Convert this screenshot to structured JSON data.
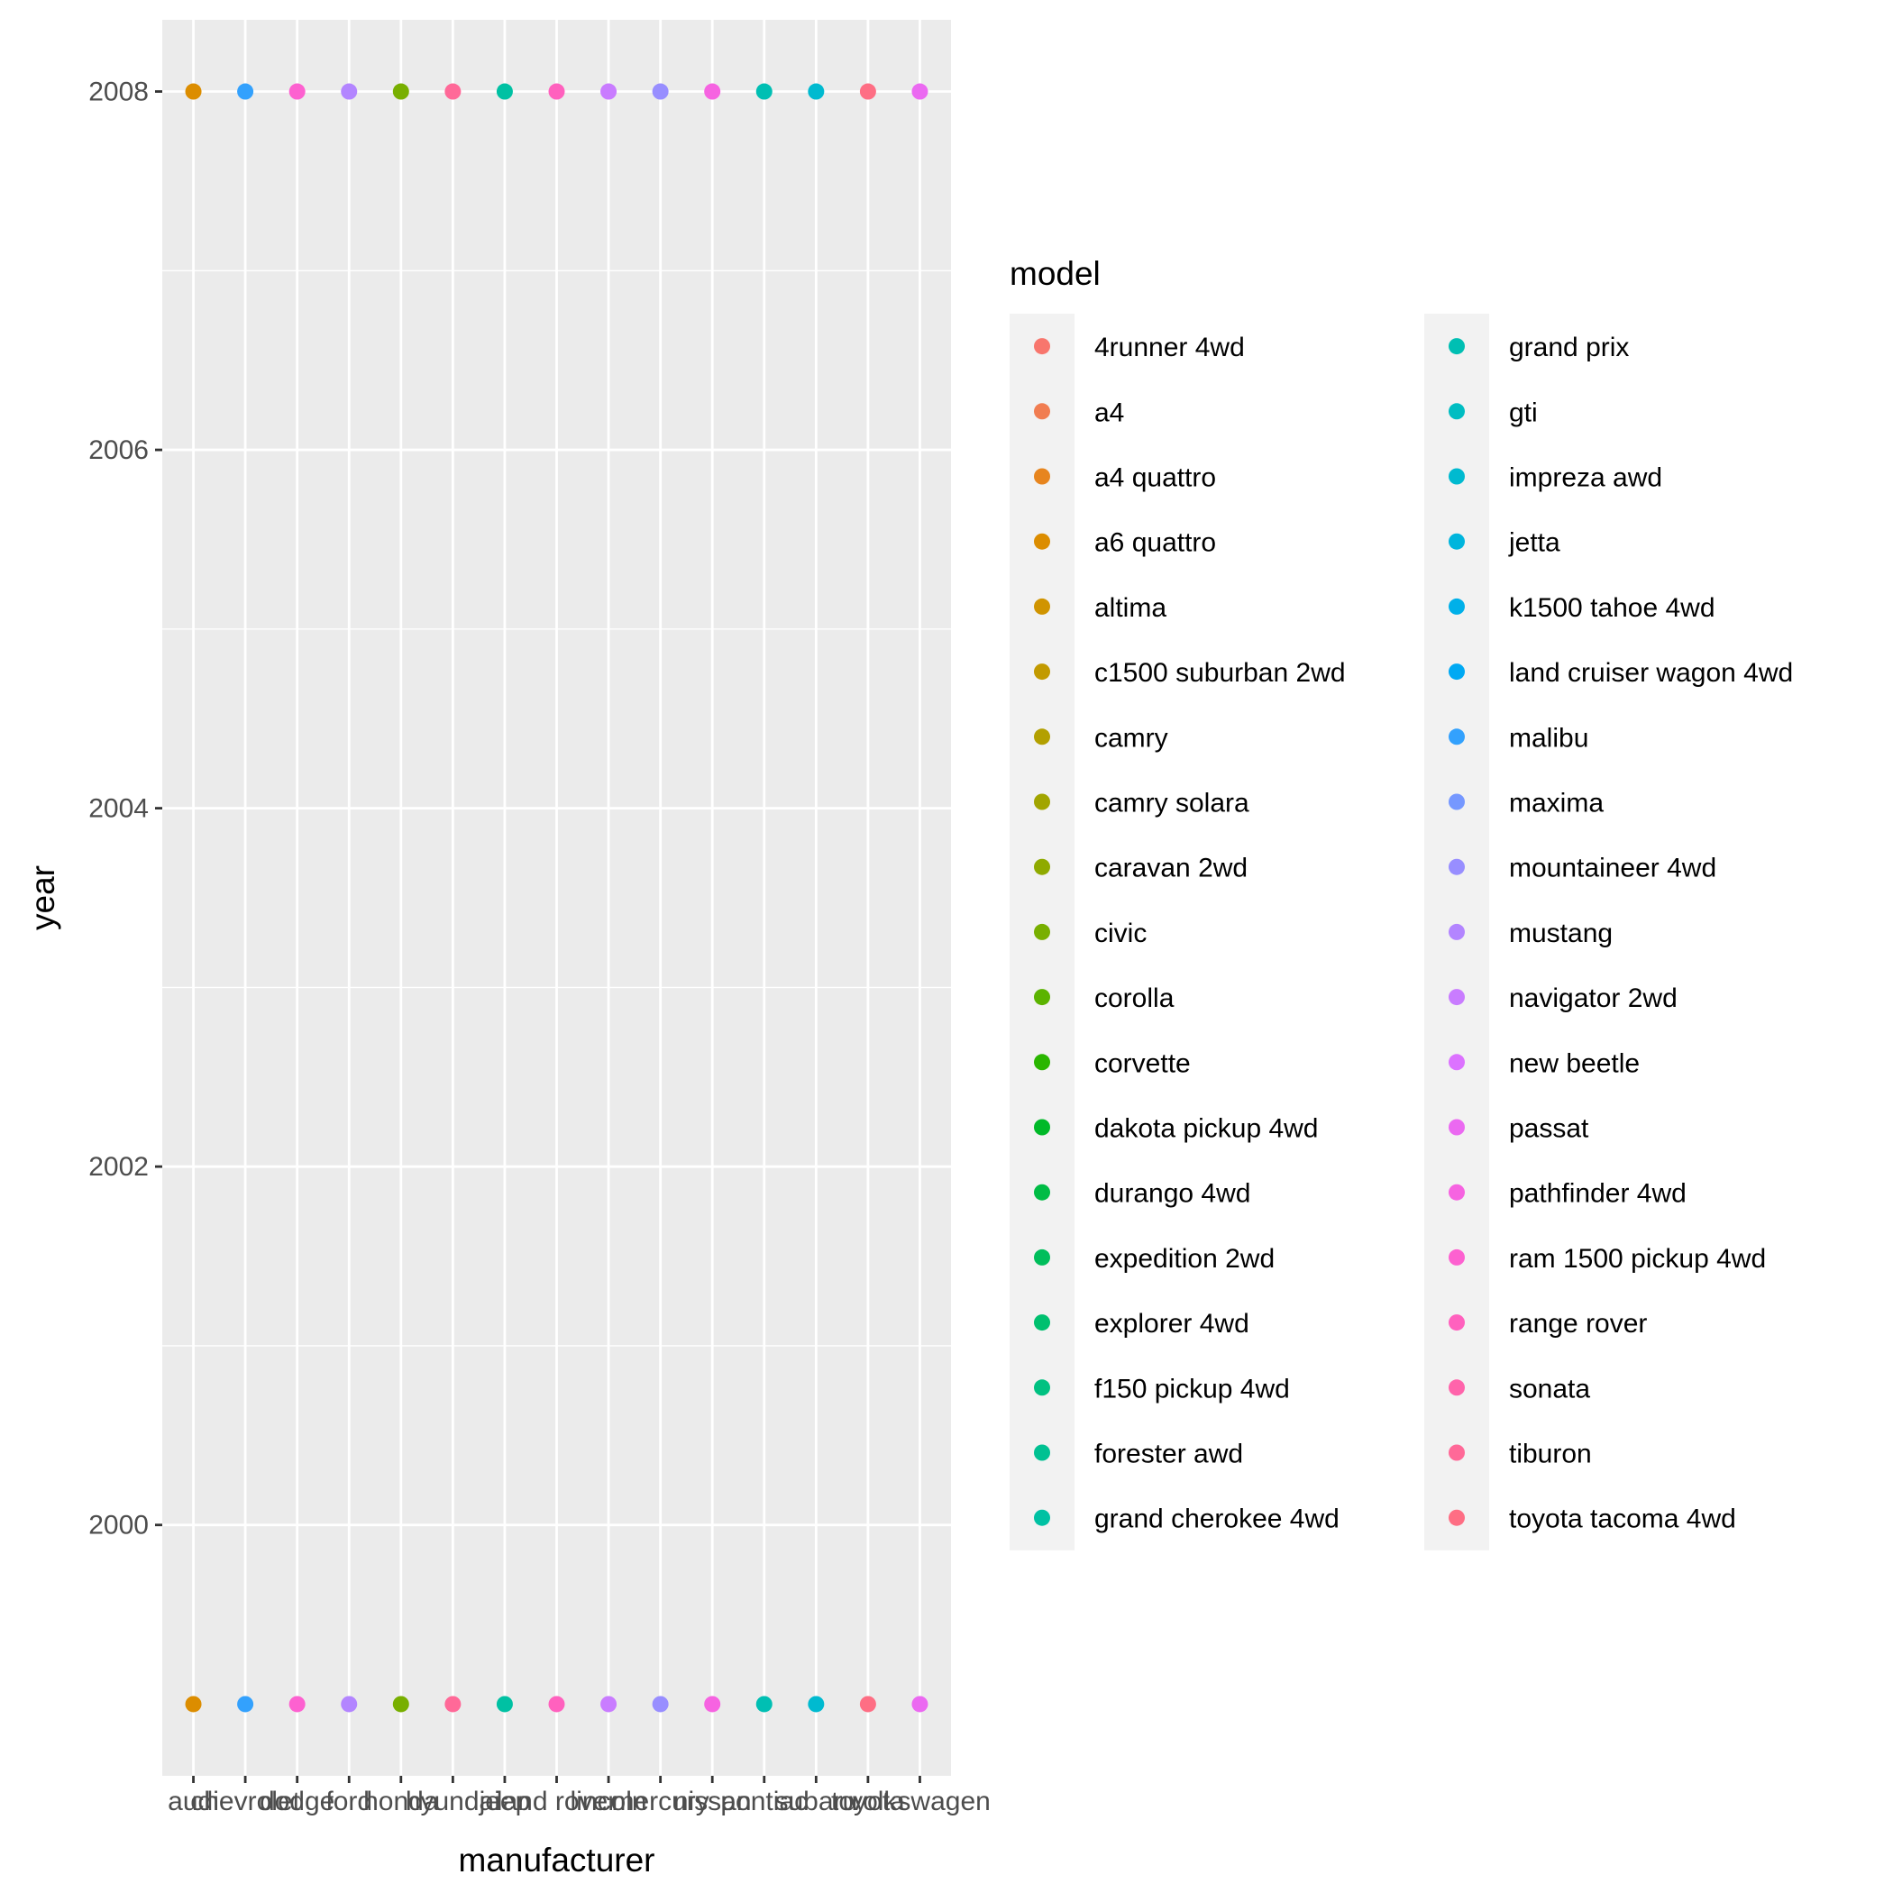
{
  "chart_data": {
    "type": "scatter",
    "xlabel": "manufacturer",
    "ylabel": "year",
    "categories": [
      "audi",
      "chevrolet",
      "dodge",
      "ford",
      "honda",
      "hyundai",
      "jeep",
      "land rover",
      "lincoln",
      "mercury",
      "nissan",
      "pontiac",
      "subaru",
      "toyota",
      "volkswagen"
    ],
    "y_ticks": [
      2000,
      2002,
      2004,
      2006,
      2008
    ],
    "ylim": [
      1998.6,
      2008.4
    ],
    "grid": true,
    "legend": {
      "title": "model",
      "position": "right",
      "columns": 2,
      "entries": [
        "4runner 4wd",
        "a4",
        "a4 quattro",
        "a6 quattro",
        "altima",
        "c1500 suburban 2wd",
        "camry",
        "camry solara",
        "caravan 2wd",
        "civic",
        "corolla",
        "corvette",
        "dakota pickup 4wd",
        "durango 4wd",
        "expedition 2wd",
        "explorer 4wd",
        "f150 pickup 4wd",
        "forester awd",
        "grand cherokee 4wd",
        "grand prix",
        "gti",
        "impreza awd",
        "jetta",
        "k1500 tahoe 4wd",
        "land cruiser wagon 4wd",
        "malibu",
        "maxima",
        "mountaineer 4wd",
        "mustang",
        "navigator 2wd",
        "new beetle",
        "passat",
        "pathfinder 4wd",
        "ram 1500 pickup 4wd",
        "range rover",
        "sonata",
        "tiburon",
        "toyota tacoma 4wd"
      ],
      "colors": [
        "#F8766D",
        "#F17D51",
        "#E7851E",
        "#DC8D00",
        "#D09400",
        "#C29A00",
        "#B3A000",
        "#A2A500",
        "#8FAA00",
        "#78AF00",
        "#5BB300",
        "#2AB600",
        "#00B928",
        "#00BC45",
        "#00BE5B",
        "#00C06F",
        "#00C181",
        "#00C192",
        "#00C1A3",
        "#00BFB3",
        "#00BDC2",
        "#00BAD0",
        "#00B5DD",
        "#00B0E9",
        "#00A9F3",
        "#33A1FD",
        "#7698FF",
        "#988EFF",
        "#B385FF",
        "#C97CFF",
        "#DC72FF",
        "#EB69F1",
        "#F663E1",
        "#FD61D0",
        "#FF61BE",
        "#FF64AB",
        "#FF6998",
        "#FE6E84"
      ]
    },
    "points": [
      {
        "x": "audi",
        "y": 2008,
        "model": "a6 quattro"
      },
      {
        "x": "audi",
        "y": 1999,
        "model": "a6 quattro"
      },
      {
        "x": "chevrolet",
        "y": 2008,
        "model": "malibu"
      },
      {
        "x": "chevrolet",
        "y": 1999,
        "model": "malibu"
      },
      {
        "x": "dodge",
        "y": 2008,
        "model": "ram 1500 pickup 4wd"
      },
      {
        "x": "dodge",
        "y": 1999,
        "model": "ram 1500 pickup 4wd"
      },
      {
        "x": "ford",
        "y": 2008,
        "model": "mustang"
      },
      {
        "x": "ford",
        "y": 1999,
        "model": "mustang"
      },
      {
        "x": "honda",
        "y": 2008,
        "model": "civic"
      },
      {
        "x": "honda",
        "y": 1999,
        "model": "civic"
      },
      {
        "x": "hyundai",
        "y": 2008,
        "model": "tiburon"
      },
      {
        "x": "hyundai",
        "y": 1999,
        "model": "tiburon"
      },
      {
        "x": "jeep",
        "y": 2008,
        "model": "grand cherokee 4wd"
      },
      {
        "x": "jeep",
        "y": 1999,
        "model": "grand cherokee 4wd"
      },
      {
        "x": "land rover",
        "y": 2008,
        "model": "range rover"
      },
      {
        "x": "land rover",
        "y": 1999,
        "model": "range rover"
      },
      {
        "x": "lincoln",
        "y": 2008,
        "model": "navigator 2wd"
      },
      {
        "x": "lincoln",
        "y": 1999,
        "model": "navigator 2wd"
      },
      {
        "x": "mercury",
        "y": 2008,
        "model": "mountaineer 4wd"
      },
      {
        "x": "mercury",
        "y": 1999,
        "model": "mountaineer 4wd"
      },
      {
        "x": "nissan",
        "y": 2008,
        "model": "pathfinder 4wd"
      },
      {
        "x": "nissan",
        "y": 1999,
        "model": "pathfinder 4wd"
      },
      {
        "x": "pontiac",
        "y": 2008,
        "model": "grand prix"
      },
      {
        "x": "pontiac",
        "y": 1999,
        "model": "grand prix"
      },
      {
        "x": "subaru",
        "y": 2008,
        "model": "impreza awd"
      },
      {
        "x": "subaru",
        "y": 1999,
        "model": "impreza awd"
      },
      {
        "x": "toyota",
        "y": 2008,
        "model": "toyota tacoma 4wd"
      },
      {
        "x": "toyota",
        "y": 1999,
        "model": "toyota tacoma 4wd"
      },
      {
        "x": "volkswagen",
        "y": 2008,
        "model": "passat"
      },
      {
        "x": "volkswagen",
        "y": 1999,
        "model": "passat"
      }
    ]
  }
}
